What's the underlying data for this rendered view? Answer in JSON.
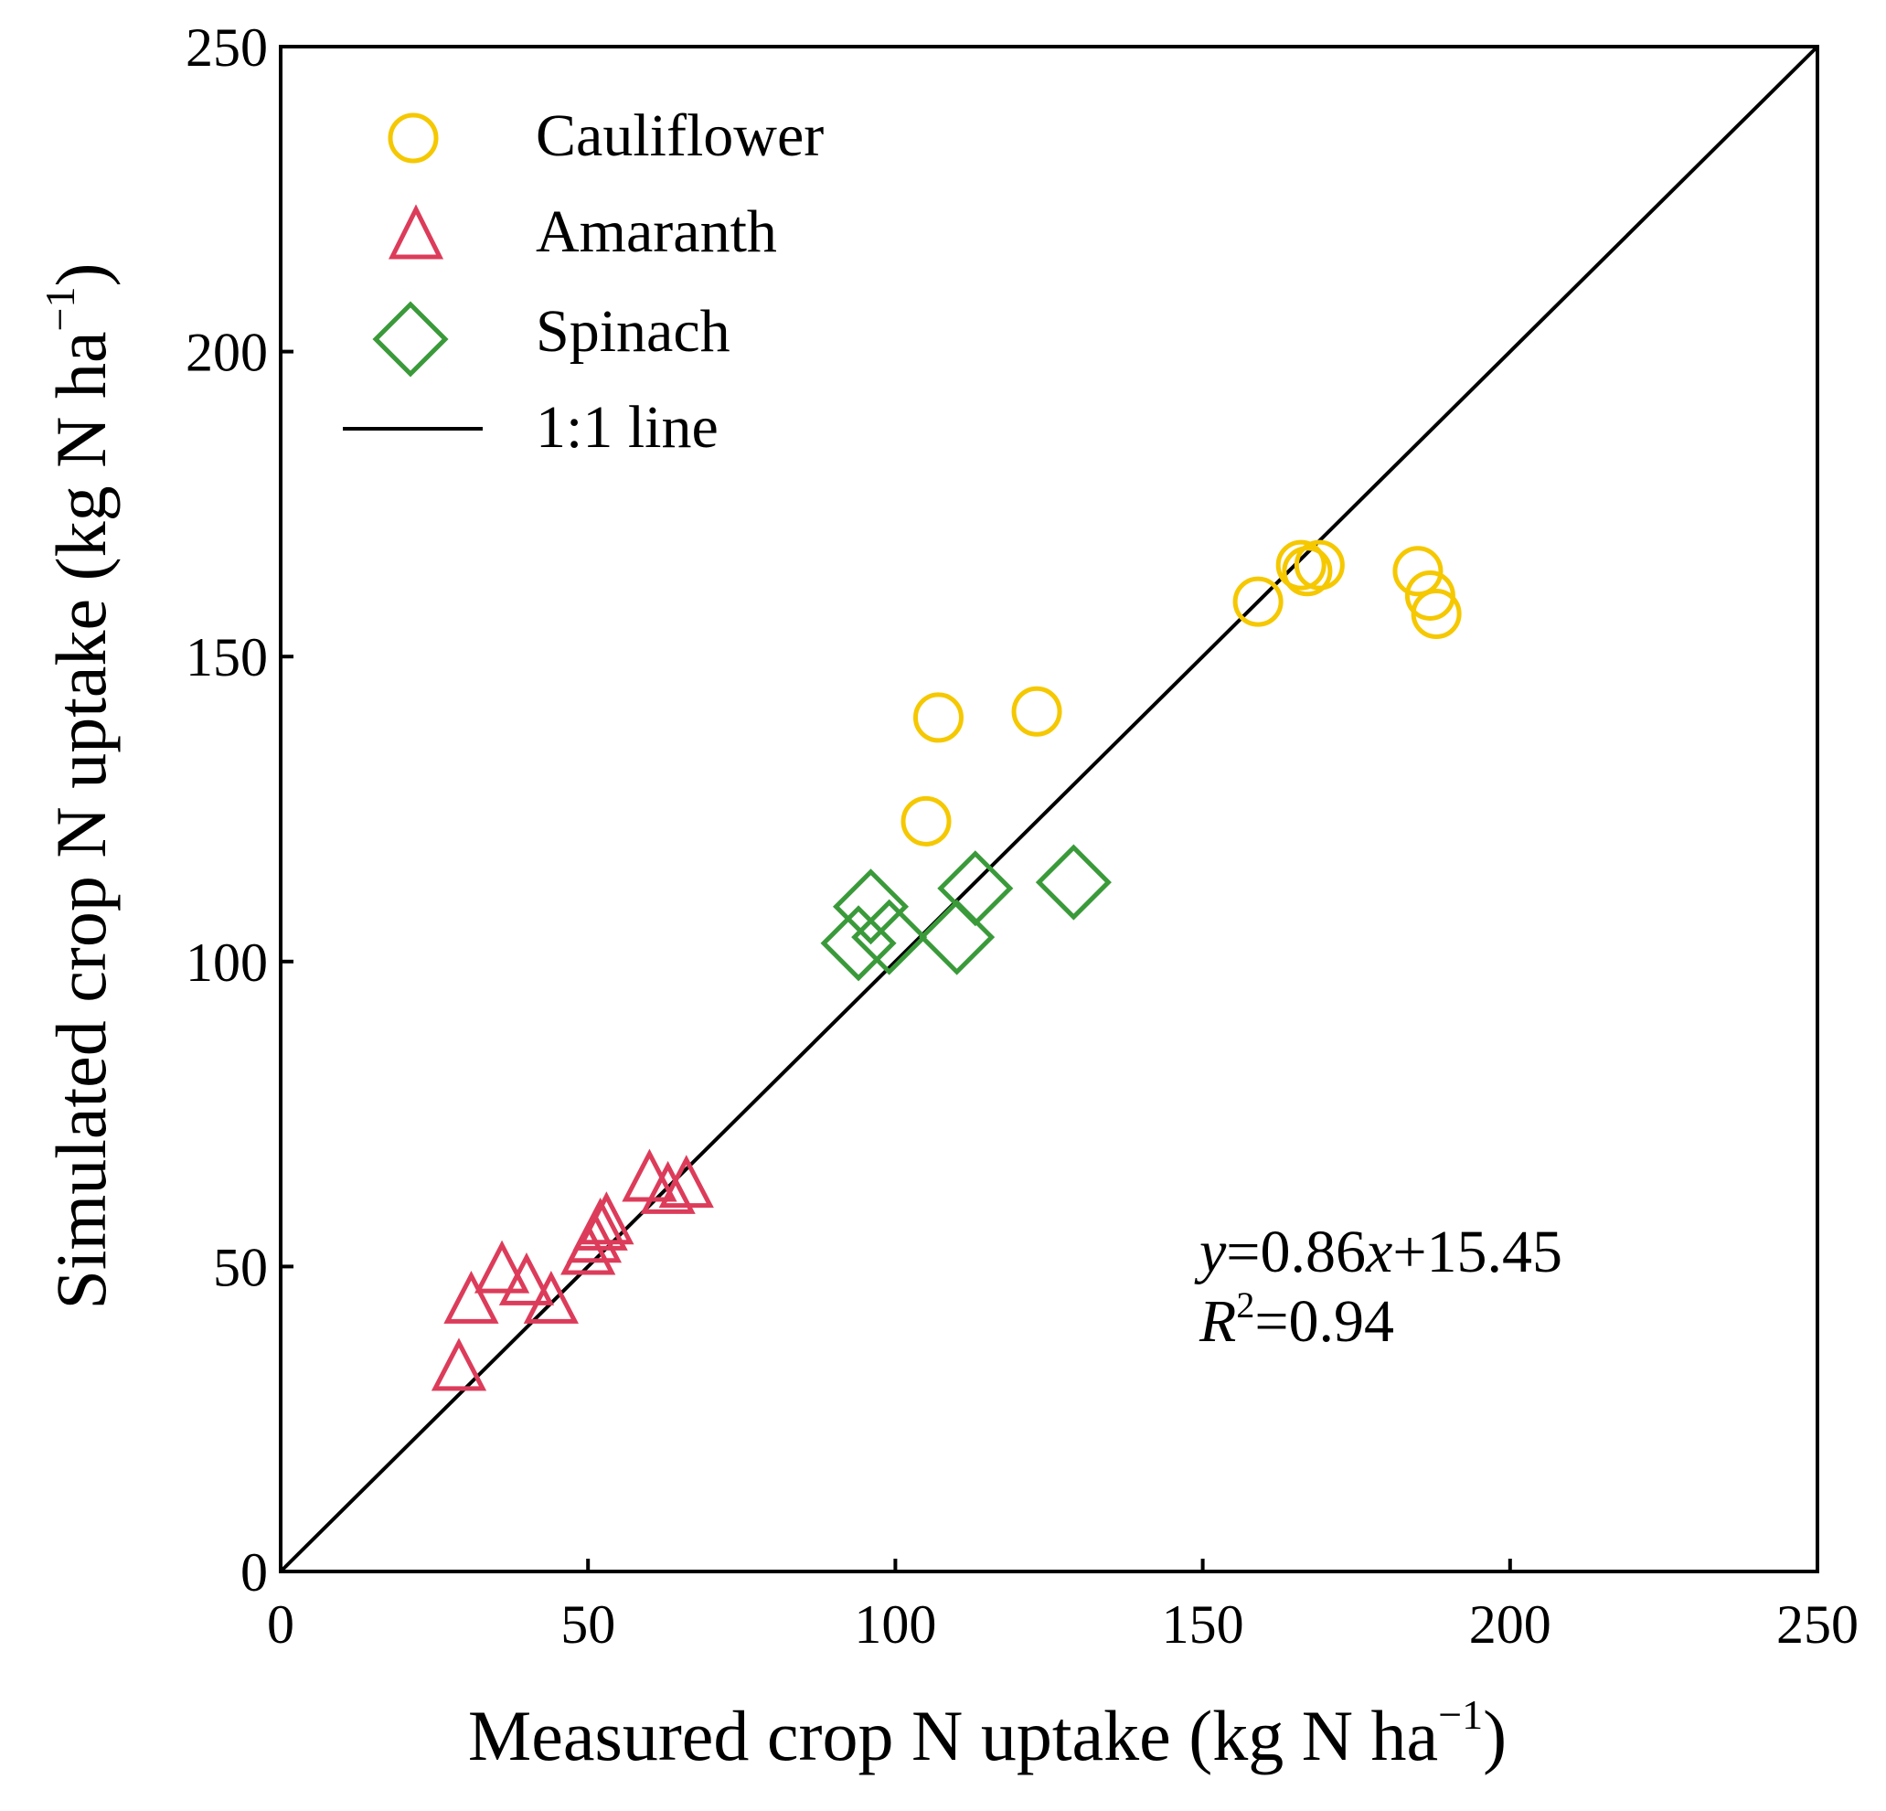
{
  "chart_data": {
    "type": "scatter",
    "title": "",
    "xlabel": "Measured crop N uptake (kg N ha",
    "ylabel": "Simulated crop N uptake (kg N ha",
    "unit_exponent": "−1",
    "xlim": [
      0,
      250
    ],
    "ylim": [
      0,
      250
    ],
    "xticks": [
      "0",
      "50",
      "100",
      "150",
      "200",
      "250"
    ],
    "yticks": [
      "0",
      "50",
      "100",
      "150",
      "200",
      "250"
    ],
    "grid": false,
    "legend_position": "top-left",
    "series": [
      {
        "name": "Cauliflower",
        "marker": "circle",
        "color": "#F5C800",
        "x": [
          105,
          107,
          123,
          159,
          166,
          167,
          169,
          185,
          187,
          188
        ],
        "y": [
          123,
          140,
          141,
          159,
          165,
          164,
          165,
          164,
          160,
          157
        ]
      },
      {
        "name": "Amaranth",
        "marker": "triangle",
        "color": "#DC3C5A",
        "x": [
          29,
          31,
          36,
          40,
          44,
          50,
          51,
          52,
          53,
          60,
          63,
          66
        ],
        "y": [
          33,
          44,
          49,
          47,
          44,
          52,
          54,
          56,
          57,
          64,
          62,
          63
        ]
      },
      {
        "name": "Spinach",
        "marker": "diamond",
        "color": "#3A9A3A",
        "x": [
          94,
          96,
          99,
          110,
          113,
          129
        ],
        "y": [
          103,
          109,
          104,
          104,
          112,
          113
        ]
      }
    ],
    "reference_line": {
      "name": "1:1 line",
      "color": "#000000"
    },
    "annotation": {
      "eq_y": "y",
      "eq_mid": "=0.86",
      "eq_x": "x",
      "eq_tail": "+15.45",
      "r_sym": "R",
      "r_exp": "2",
      "r_tail": "=0.94"
    }
  }
}
